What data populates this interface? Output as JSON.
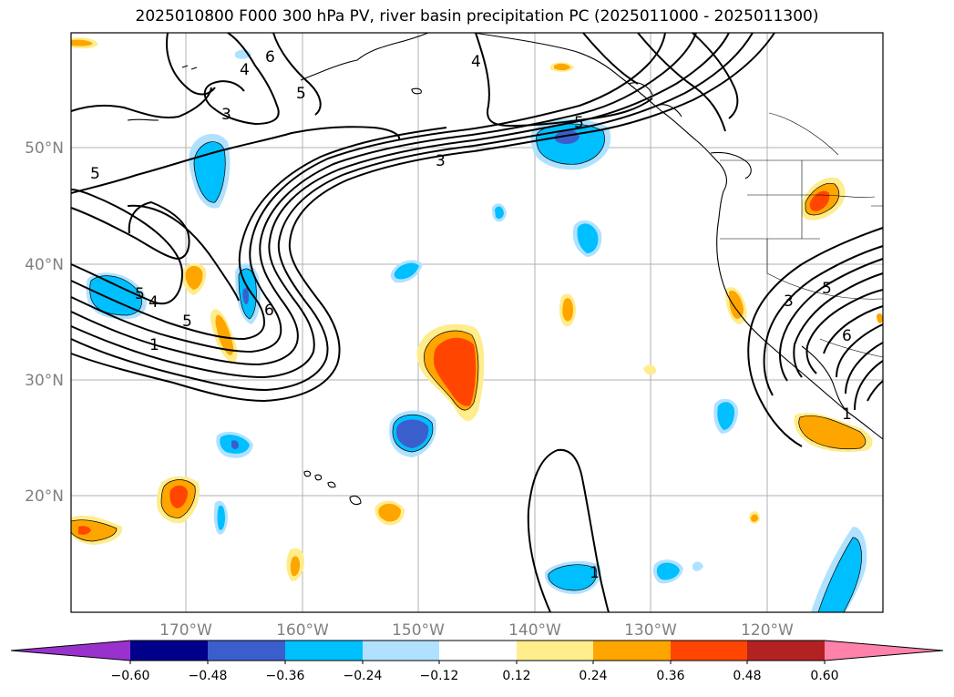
{
  "title": "2025010800 F000 300 hPa PV, river basin precipitation PC (2025011000 - 2025011300)",
  "map": {
    "lon_ticks": [
      "170°W",
      "160°W",
      "150°W",
      "140°W",
      "130°W",
      "120°W"
    ],
    "lat_ticks": [
      "50°N",
      "40°N",
      "30°N",
      "20°N"
    ],
    "contour_labels": [
      "4",
      "6",
      "5",
      "3",
      "5",
      "4",
      "5",
      "3",
      "5",
      "4",
      "5",
      "1",
      "6",
      "3",
      "5",
      "6",
      "1",
      "1"
    ]
  },
  "colorbar": {
    "ticks": [
      "−0.60",
      "−0.48",
      "−0.36",
      "−0.24",
      "−0.12",
      "0.12",
      "0.24",
      "0.36",
      "0.48",
      "0.60"
    ],
    "colors": [
      "#9932cc",
      "#00008b",
      "#3a5fcd",
      "#00bfff",
      "#b0e2ff",
      "#ffffff",
      "#ffec8b",
      "#ffa500",
      "#ff4500",
      "#b22222",
      "#ff82ab"
    ]
  }
}
